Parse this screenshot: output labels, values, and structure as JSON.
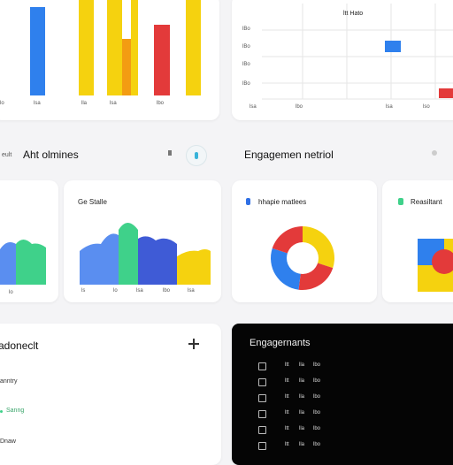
{
  "top_left_chart": {
    "tick_labels": [
      "lo",
      "lsa",
      "lla",
      "lsa",
      "lbo"
    ],
    "colors": [
      "#2f80ed",
      "#f2c811",
      "#f5d20f",
      "#f5d20f",
      "#f39c12",
      "#e33a3a",
      "#f6d40e",
      "#f5d20f"
    ]
  },
  "top_right_chart": {
    "title": "ltt Hato",
    "y_ticks": [
      "lBo",
      "lBo",
      "lBo",
      "lBo"
    ],
    "x_ticks": [
      "lsa",
      "lbo",
      "lsa",
      "lso"
    ]
  },
  "section_left": {
    "small_label": "eult",
    "title": "Aht olmines"
  },
  "engagement": {
    "title": "Engagemen netriol"
  },
  "card_ge": {
    "label": "Ge Stalle",
    "tick_labels": [
      "ls",
      "lo",
      "lsa",
      "lbo",
      "lsa"
    ]
  },
  "small_area_card": {
    "tick_labels": [
      "lo"
    ]
  },
  "donut_card": {
    "label": "hhapie matlees",
    "slices": [
      {
        "value": 30,
        "color": "#f5d20f"
      },
      {
        "value": 22,
        "color": "#e33a3a"
      },
      {
        "value": 28,
        "color": "#2f80ed"
      },
      {
        "value": 20,
        "color": "#e33a3a"
      }
    ]
  },
  "result_card": {
    "label": "Reasiltant"
  },
  "bottom_left": {
    "title": "adoneclt",
    "item1": "anntry",
    "item2": "Sanng",
    "item3": "Dnaw"
  },
  "engagements_panel": {
    "title": "Engagernants",
    "rows": [
      {
        "a": "ltt",
        "b": "lla",
        "c": "lbo"
      },
      {
        "a": "ltt",
        "b": "lla",
        "c": "lbo"
      },
      {
        "a": "ltt",
        "b": "lla",
        "c": "lbo"
      },
      {
        "a": "ltt",
        "b": "lla",
        "c": "lbo"
      },
      {
        "a": "ltt",
        "b": "lla",
        "c": "lbo"
      },
      {
        "a": "ltt",
        "b": "lla",
        "c": "lbo"
      }
    ]
  },
  "icons": {
    "plus": "plus-icon",
    "toggle": "toggle-icon"
  }
}
